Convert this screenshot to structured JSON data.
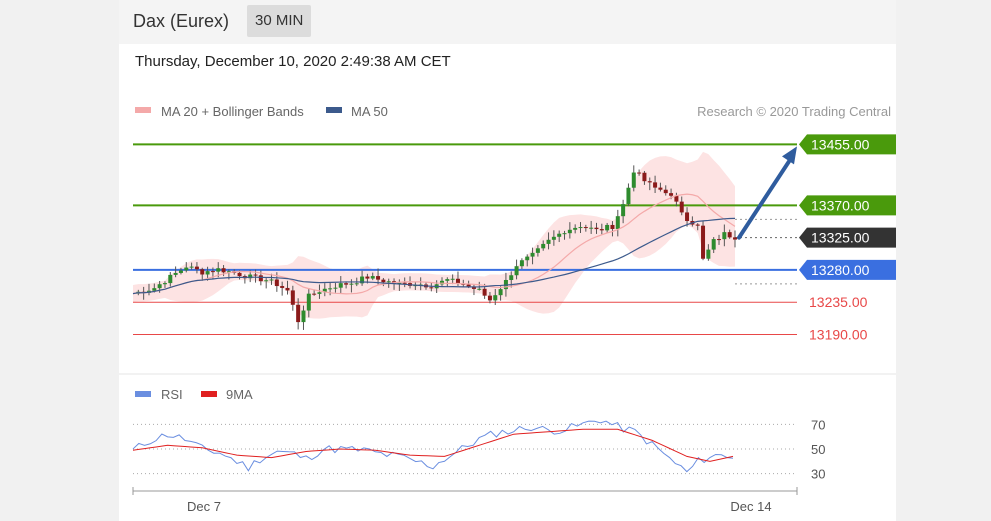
{
  "header": {
    "instrument": "Dax (Eurex)",
    "interval": "30 MIN"
  },
  "datetime": "Thursday, December 10, 2020 2:49:38 AM CET",
  "credit": "Research © 2020 Trading Central",
  "colors": {
    "ma20": "#f4a9a9",
    "ma50": "#3c5a8c",
    "green_level": "#4a9a0c",
    "blue_level": "#3a6fe0",
    "red_level": "#e84848",
    "current": "#333333",
    "rsi": "#6a8ee0",
    "rsi_ma": "#e02020",
    "arrow": "#2f5c9e"
  },
  "chart_data": [
    {
      "type": "candlestick",
      "legend": [
        {
          "name": "MA 20 + Bollinger Bands",
          "color": "#f4a9a9"
        },
        {
          "name": "MA 50",
          "color": "#3c5a8c"
        }
      ],
      "legend_placement": "top-left",
      "ylim": [
        13160,
        13475
      ],
      "x_ticks": [
        "Dec 7",
        "Dec 14"
      ],
      "levels": [
        {
          "label": "13455.00",
          "value": 13455,
          "kind": "resistance"
        },
        {
          "label": "13370.00",
          "value": 13370,
          "kind": "resistance"
        },
        {
          "label": "13325.00",
          "value": 13325,
          "kind": "current"
        },
        {
          "label": "13280.00",
          "value": 13280,
          "kind": "pivot"
        },
        {
          "label": "13235.00",
          "value": 13235,
          "kind": "support"
        },
        {
          "label": "13190.00",
          "value": 13190,
          "kind": "support"
        }
      ],
      "arrow": {
        "from": 13325,
        "to": 13455,
        "direction": "up"
      },
      "close_path": [
        [
          0,
          13247
        ],
        [
          4,
          13255
        ],
        [
          7,
          13270
        ],
        [
          10,
          13285
        ],
        [
          13,
          13277
        ],
        [
          16,
          13281
        ],
        [
          19,
          13276
        ],
        [
          22,
          13270
        ],
        [
          25,
          13266
        ],
        [
          27,
          13260
        ],
        [
          29,
          13251
        ],
        [
          31,
          13209
        ],
        [
          33,
          13243
        ],
        [
          35,
          13251
        ],
        [
          38,
          13258
        ],
        [
          41,
          13262
        ],
        [
          44,
          13270
        ],
        [
          47,
          13265
        ],
        [
          50,
          13260
        ],
        [
          53,
          13261
        ],
        [
          56,
          13258
        ],
        [
          59,
          13266
        ],
        [
          62,
          13260
        ],
        [
          65,
          13251
        ],
        [
          67,
          13238
        ],
        [
          70,
          13264
        ],
        [
          72,
          13287
        ],
        [
          75,
          13300
        ],
        [
          78,
          13320
        ],
        [
          81,
          13335
        ],
        [
          84,
          13342
        ],
        [
          87,
          13335
        ],
        [
          90,
          13341
        ],
        [
          92,
          13371
        ],
        [
          94,
          13419
        ],
        [
          96,
          13404
        ],
        [
          98,
          13394
        ],
        [
          100,
          13390
        ],
        [
          102,
          13372
        ],
        [
          104,
          13352
        ],
        [
          106,
          13340
        ],
        [
          107,
          13294
        ],
        [
          109,
          13320
        ],
        [
          111,
          13330
        ],
        [
          113,
          13326
        ]
      ]
    },
    {
      "type": "line",
      "legend": [
        {
          "name": "RSI",
          "color": "#6a8ee0"
        },
        {
          "name": "9MA",
          "color": "#e02020"
        }
      ],
      "legend_placement": "top-left",
      "ylim": [
        20,
        80
      ],
      "y_ticks": [
        70,
        50,
        30
      ],
      "rsi_path": [
        [
          0,
          49
        ],
        [
          3,
          57
        ],
        [
          6,
          62
        ],
        [
          9,
          58
        ],
        [
          12,
          50
        ],
        [
          15,
          47
        ],
        [
          18,
          40
        ],
        [
          20,
          35
        ],
        [
          22,
          42
        ],
        [
          25,
          48
        ],
        [
          28,
          46
        ],
        [
          30,
          42
        ],
        [
          33,
          50
        ],
        [
          36,
          50
        ],
        [
          40,
          49
        ],
        [
          43,
          46
        ],
        [
          46,
          44
        ],
        [
          49,
          40
        ],
        [
          52,
          36
        ],
        [
          54,
          42
        ],
        [
          57,
          50
        ],
        [
          60,
          58
        ],
        [
          63,
          63
        ],
        [
          66,
          65
        ],
        [
          69,
          68
        ],
        [
          72,
          65
        ],
        [
          75,
          66
        ],
        [
          78,
          70
        ],
        [
          81,
          74
        ],
        [
          84,
          68
        ],
        [
          87,
          64
        ],
        [
          89,
          57
        ],
        [
          91,
          50
        ],
        [
          93,
          42
        ],
        [
          95,
          35
        ],
        [
          96,
          31
        ],
        [
          98,
          40
        ],
        [
          100,
          44
        ],
        [
          102,
          45
        ],
        [
          104,
          44
        ]
      ],
      "rsi_ma_path": [
        [
          0,
          49
        ],
        [
          6,
          53
        ],
        [
          12,
          51
        ],
        [
          18,
          45
        ],
        [
          24,
          43
        ],
        [
          30,
          48
        ],
        [
          36,
          50
        ],
        [
          42,
          49
        ],
        [
          48,
          45
        ],
        [
          54,
          44
        ],
        [
          60,
          53
        ],
        [
          66,
          62
        ],
        [
          72,
          64
        ],
        [
          78,
          66
        ],
        [
          84,
          66
        ],
        [
          90,
          57
        ],
        [
          96,
          44
        ],
        [
          100,
          40
        ],
        [
          104,
          44
        ]
      ]
    }
  ]
}
